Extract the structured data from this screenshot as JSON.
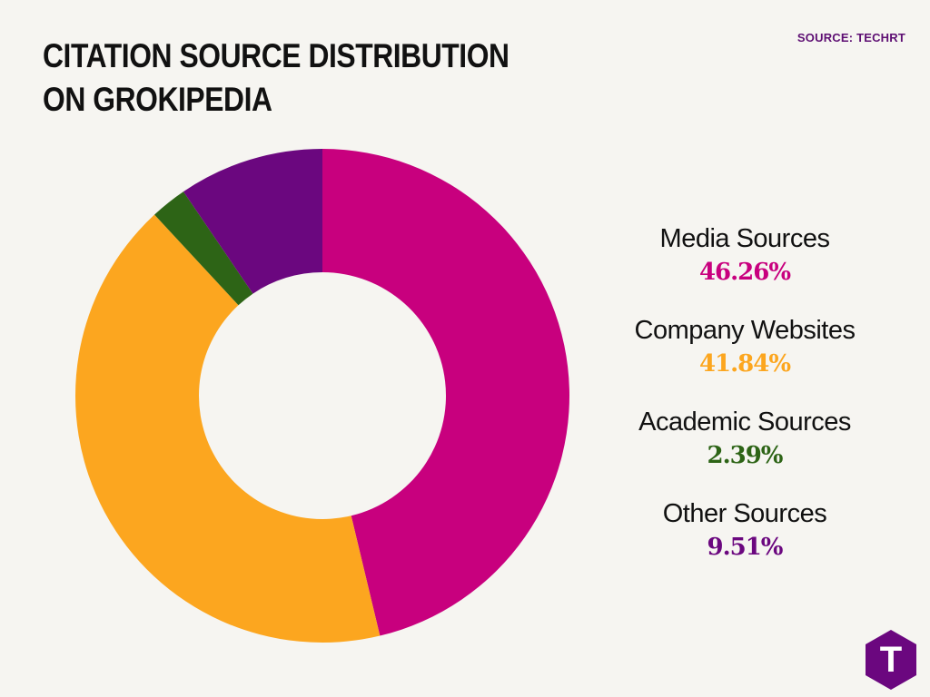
{
  "header": {
    "title": "CITATION SOURCE DISTRIBUTION ON GROKIPEDIA",
    "source": "SOURCE: TECHRT"
  },
  "chart_data": {
    "type": "pie",
    "donut": true,
    "title": "CITATION SOURCE DISTRIBUTION ON GROKIPEDIA",
    "categories": [
      "Media Sources",
      "Company Websites",
      "Academic Sources",
      "Other Sources"
    ],
    "values": [
      46.26,
      41.84,
      2.39,
      9.51
    ],
    "value_labels": [
      "46.26%",
      "41.84%",
      "2.39%",
      "9.51%"
    ],
    "colors": [
      "#c8007e",
      "#fca61f",
      "#2d6416",
      "#6b077f"
    ],
    "legend_position": "right"
  },
  "logo": {
    "letter": "T",
    "color": "#6b077f"
  }
}
